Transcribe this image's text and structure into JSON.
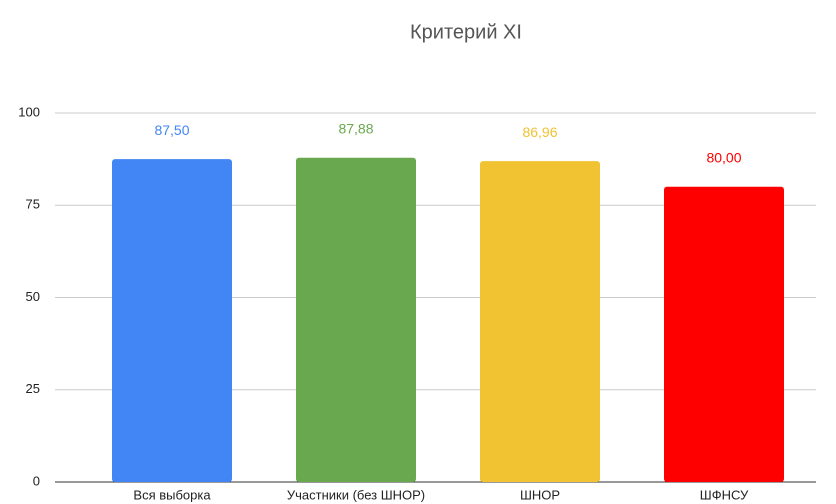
{
  "chart_data": {
    "type": "bar",
    "title": "Критерий XI",
    "categories": [
      "Вся выборка",
      "Участники (без ШНОР)",
      "ШНОР",
      "ШФНСУ"
    ],
    "values": [
      87.5,
      87.88,
      86.96,
      80
    ],
    "value_labels": [
      "87,50",
      "87,88",
      "86,96",
      "80,00"
    ],
    "colors": [
      "#4285f4",
      "#6aa84f",
      "#f1c232",
      "#ff0000"
    ],
    "ylim": [
      0,
      100
    ],
    "yticks": [
      0,
      25,
      50,
      75,
      100
    ],
    "grid": true
  }
}
